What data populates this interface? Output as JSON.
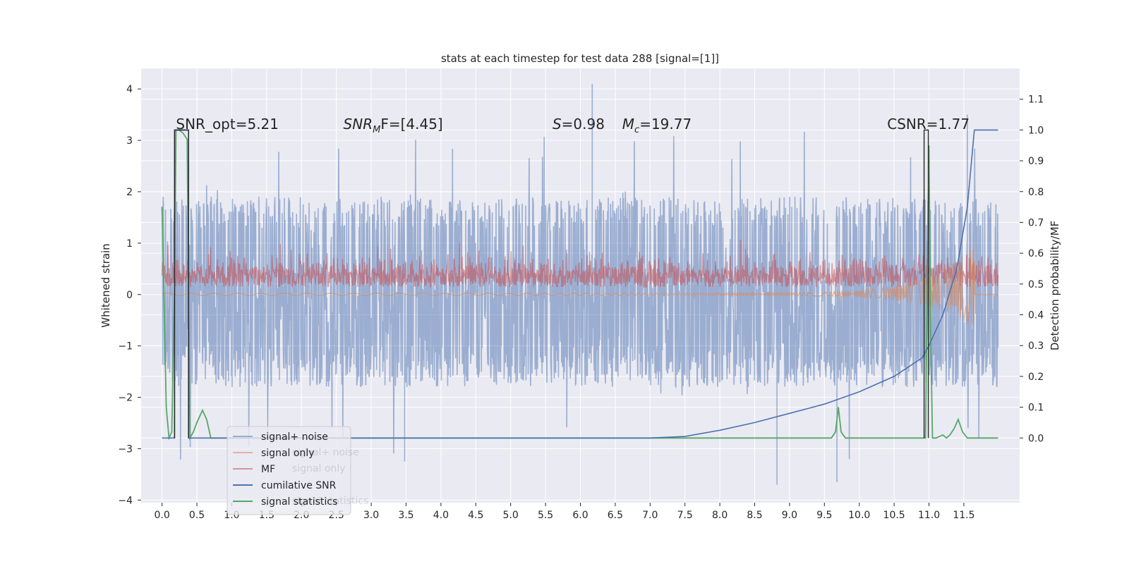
{
  "chart_data": {
    "type": "line",
    "title": "stats at each timestep for test data 288 [signal=[1]]",
    "ylabel_left": "Whitened strain",
    "ylabel_right": "Detection probability/MF",
    "x_ticks": [
      "0.0",
      "0.5",
      "1.0",
      "1.5",
      "2.0",
      "2.5",
      "3.0",
      "3.5",
      "4.0",
      "4.5",
      "5.0",
      "5.5",
      "6.0",
      "6.5",
      "7.0",
      "7.5",
      "8.0",
      "8.5",
      "9.0",
      "9.5",
      "10.0",
      "10.5",
      "11.0",
      "11.5"
    ],
    "y_left_ticks": [
      4,
      3,
      2,
      1,
      0,
      -1,
      -2,
      -3,
      -4
    ],
    "y_left_ticklabels": [
      "4",
      "3",
      "2",
      "1",
      "0",
      "−1",
      "−2",
      "−3",
      "−4"
    ],
    "y_right_ticks": [
      "1.1",
      "1.0",
      "0.9",
      "0.8",
      "0.7",
      "0.6",
      "0.5",
      "0.4",
      "0.3",
      "0.2",
      "0.1",
      "0.0"
    ],
    "xlim": [
      -0.3,
      12.3
    ],
    "ylim_left": [
      -4.05,
      4.4
    ],
    "ylim_right": [
      -0.21,
      1.2
    ],
    "grid": true,
    "background": "#eaeaf2",
    "annotations": [
      {
        "text": "SNR_opt=5.21",
        "x": 0.2
      },
      {
        "text": "SNRₘF=[4.45]",
        "x": 2.6,
        "italic_prefix": "SNR",
        "sub": "M",
        "rest": "F=[4.45]"
      },
      {
        "text": "S=0.98",
        "x": 5.6,
        "italic_prefix": "S",
        "rest": "=0.98"
      },
      {
        "text": "M_c=19.77",
        "x": 6.6,
        "italic_prefix": "M",
        "sub": "c",
        "rest": "=19.77"
      },
      {
        "text": "CSNR=1.77",
        "x": 10.4
      }
    ],
    "series": [
      {
        "name": "signal+ noise",
        "color": "#4c72b0",
        "axis": "left",
        "alpha": 0.5,
        "note": "dense whitened noise, mostly within [-1.8, 2.0], spikes to 4.1 near t=6.2 and -3.7 near t=8.8"
      },
      {
        "name": "signal only",
        "color": "#dd8452",
        "axis": "left",
        "alpha": 0.5,
        "x": [
          0.0,
          10.5,
          11.0,
          11.2,
          11.4,
          11.55,
          11.62,
          11.65,
          11.7,
          11.99
        ],
        "y": [
          0.0,
          0.02,
          0.12,
          0.25,
          0.4,
          0.7,
          0.8,
          -0.9,
          0.0,
          0.0
        ]
      },
      {
        "name": "MF",
        "color": "#c44e52",
        "axis": "right",
        "alpha": 0.5,
        "note": "noisy band roughly between 0.49 and 0.62 detection prob."
      },
      {
        "name": "cumilative SNR",
        "color": "#4c72b0",
        "axis": "right",
        "x": [
          0.0,
          0.18,
          0.18,
          0.38,
          0.38,
          7.0,
          7.5,
          8.0,
          8.5,
          9.0,
          9.5,
          10.0,
          10.5,
          10.9,
          11.0,
          11.2,
          11.4,
          11.55,
          11.65,
          11.72,
          11.99
        ],
        "y": [
          0.0,
          0.0,
          1.0,
          1.0,
          0.0,
          0.0,
          0.005,
          0.025,
          0.05,
          0.08,
          0.11,
          0.15,
          0.2,
          0.26,
          0.3,
          0.4,
          0.55,
          0.75,
          1.0,
          1.0,
          1.0
        ]
      },
      {
        "name": "signal statistics",
        "color": "#55a868",
        "axis": "right",
        "x": [
          0.0,
          0.02,
          0.06,
          0.1,
          0.14,
          0.18,
          0.2,
          0.24,
          0.3,
          0.36,
          0.4,
          0.45,
          0.5,
          0.58,
          0.64,
          0.7,
          0.8,
          9.6,
          9.66,
          9.7,
          9.74,
          9.8,
          10.5,
          10.95,
          11.0,
          11.02,
          11.05,
          11.1,
          11.2,
          11.25,
          11.3,
          11.36,
          11.42,
          11.48,
          11.55,
          11.99
        ],
        "y": [
          0.75,
          0.55,
          0.1,
          0.0,
          0.02,
          0.5,
          1.0,
          1.0,
          0.99,
          0.97,
          0.0,
          0.02,
          0.05,
          0.09,
          0.06,
          0.0,
          0.0,
          0.0,
          0.02,
          0.1,
          0.02,
          0.0,
          0.0,
          0.0,
          0.95,
          0.4,
          0.0,
          0.0,
          0.01,
          0.0,
          0.01,
          0.03,
          0.06,
          0.02,
          0.0,
          0.0
        ]
      },
      {
        "name": "",
        "color": "#262626",
        "axis": "right",
        "note": "dark bounding lines",
        "x": [
          0.18,
          0.18,
          0.38,
          0.38,
          10.93,
          10.93,
          10.99,
          10.99
        ],
        "y": [
          0.0,
          1.0,
          1.0,
          0.0,
          0.0,
          1.0,
          1.0,
          0.0
        ]
      }
    ],
    "legend": {
      "placement": "lower-left",
      "entries": [
        "signal+ noise",
        "signal only",
        "MF",
        "cumilative SNR",
        "signal statistics"
      ],
      "ghost_entries": [
        "signal+ noise",
        "signal only",
        "signal statistics"
      ]
    }
  }
}
